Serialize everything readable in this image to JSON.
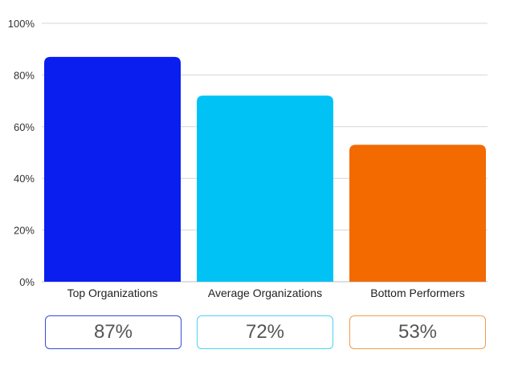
{
  "chart_data": {
    "type": "bar",
    "categories": [
      "Top Organizations",
      "Average Organizations",
      "Bottom Performers"
    ],
    "values": [
      87,
      72,
      53
    ],
    "value_labels": [
      "87%",
      "72%",
      "53%"
    ],
    "colors": [
      "#0a1ef0",
      "#00c2f5",
      "#f26a00"
    ],
    "box_border_colors": [
      "#3a49d8",
      "#4ed3f5",
      "#f29a50"
    ],
    "ylim": [
      0,
      100
    ],
    "yticks": [
      0,
      20,
      40,
      60,
      80,
      100
    ],
    "ytick_labels": [
      "0%",
      "20%",
      "40%",
      "60%",
      "80%",
      "100%"
    ],
    "grid": true,
    "legend": "none"
  }
}
